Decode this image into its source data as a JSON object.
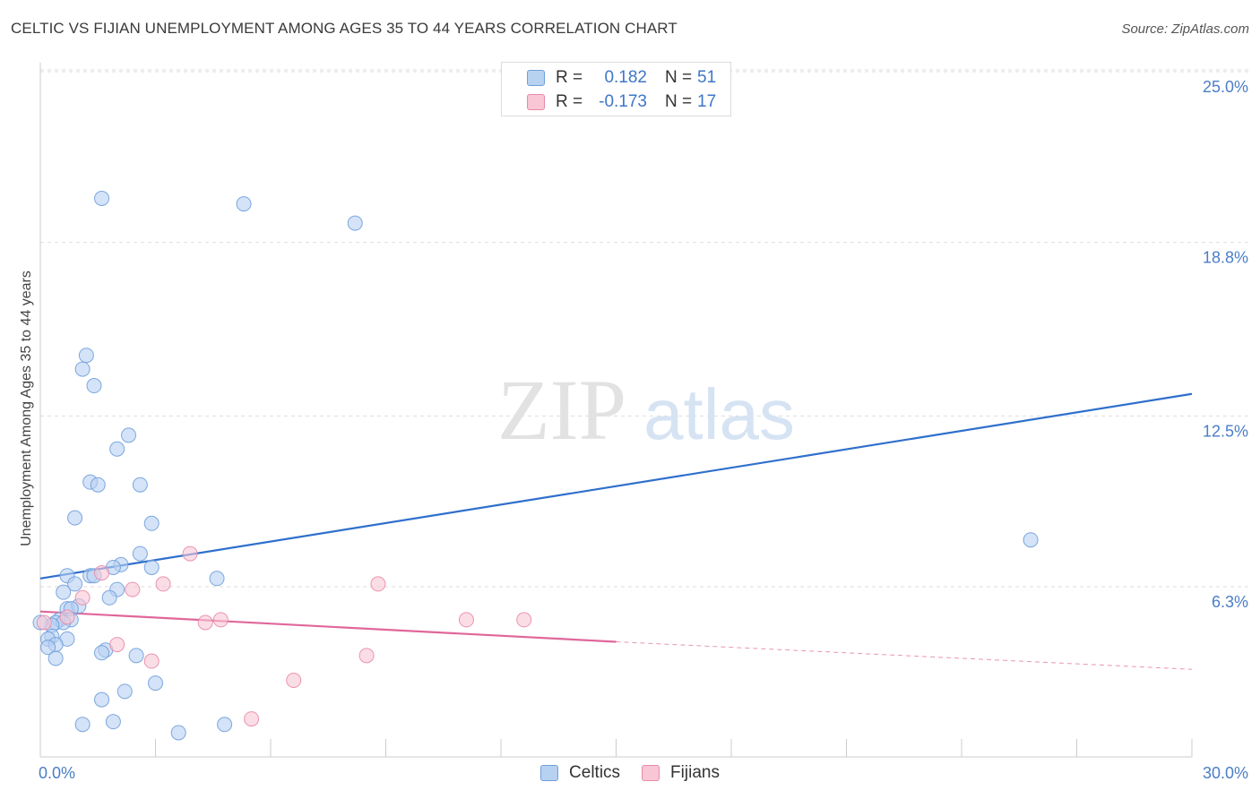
{
  "title": "CELTIC VS FIJIAN UNEMPLOYMENT AMONG AGES 35 TO 44 YEARS CORRELATION CHART",
  "source": "Source: ZipAtlas.com",
  "watermark": {
    "zip": "ZIP",
    "atlas": "atlas"
  },
  "legend": {
    "r_label": "R =",
    "n_label": "N =",
    "rows": [
      {
        "series": "Celtics",
        "r": "0.182",
        "n": "51"
      },
      {
        "series": "Fijians",
        "r": "-0.173",
        "n": "17"
      }
    ]
  },
  "bottom_legend": [
    "Celtics",
    "Fijians"
  ],
  "colors": {
    "celtics_fill": "#b7d1f1",
    "celtics_stroke": "#6f9fdb",
    "celtics_line": "#2f6fcc",
    "fijians_fill": "#f8c6d5",
    "fijians_stroke": "#e88aa8",
    "fijians_line": "#e0679a",
    "tick_text": "#4a7ec6"
  },
  "chart_data": {
    "type": "scatter",
    "title": "CELTIC VS FIJIAN UNEMPLOYMENT AMONG AGES 35 TO 44 YEARS CORRELATION CHART",
    "xlabel": "",
    "ylabel": "Unemployment Among Ages 35 to 44 years",
    "xlim": [
      0,
      30
    ],
    "ylim": [
      0,
      26
    ],
    "x_tick_labels": [
      {
        "value": 0,
        "label": "0.0%"
      },
      {
        "value": 30,
        "label": "30.0%"
      }
    ],
    "y_tick_labels": [
      {
        "value": 6.3,
        "label": "6.3%"
      },
      {
        "value": 12.5,
        "label": "12.5%"
      },
      {
        "value": 18.8,
        "label": "18.8%"
      },
      {
        "value": 25.0,
        "label": "25.0%"
      }
    ],
    "x_minor_ticks": [
      3,
      6,
      9,
      12,
      15,
      18,
      21,
      24,
      27,
      30
    ],
    "series": [
      {
        "name": "Celtics",
        "points": [
          [
            1.6,
            20.4
          ],
          [
            5.3,
            20.2
          ],
          [
            8.2,
            19.5
          ],
          [
            1.2,
            14.7
          ],
          [
            1.1,
            14.2
          ],
          [
            1.4,
            13.6
          ],
          [
            2.3,
            11.8
          ],
          [
            2.0,
            11.3
          ],
          [
            1.3,
            10.1
          ],
          [
            1.5,
            10.0
          ],
          [
            2.6,
            10.0
          ],
          [
            0.9,
            8.8
          ],
          [
            2.9,
            8.6
          ],
          [
            2.6,
            7.5
          ],
          [
            2.1,
            7.1
          ],
          [
            2.9,
            7.0
          ],
          [
            1.9,
            7.0
          ],
          [
            0.7,
            6.7
          ],
          [
            1.3,
            6.7
          ],
          [
            1.4,
            6.7
          ],
          [
            4.6,
            6.6
          ],
          [
            0.9,
            6.4
          ],
          [
            2.0,
            6.2
          ],
          [
            0.6,
            6.1
          ],
          [
            1.8,
            5.9
          ],
          [
            0.7,
            5.5
          ],
          [
            1.0,
            5.6
          ],
          [
            0.8,
            5.5
          ],
          [
            0.5,
            5.1
          ],
          [
            0.4,
            5.0
          ],
          [
            0.8,
            5.1
          ],
          [
            0.6,
            5.0
          ],
          [
            0.3,
            4.9
          ],
          [
            0.3,
            4.5
          ],
          [
            0.2,
            4.4
          ],
          [
            0.7,
            4.4
          ],
          [
            0.4,
            4.2
          ],
          [
            0.2,
            4.1
          ],
          [
            1.7,
            4.0
          ],
          [
            1.6,
            3.9
          ],
          [
            2.5,
            3.8
          ],
          [
            0.4,
            3.7
          ],
          [
            3.0,
            2.8
          ],
          [
            2.2,
            2.5
          ],
          [
            1.6,
            2.2
          ],
          [
            1.1,
            1.3
          ],
          [
            1.9,
            1.4
          ],
          [
            4.8,
            1.3
          ],
          [
            3.6,
            1.0
          ],
          [
            25.8,
            8.0
          ],
          [
            0.0,
            5.0
          ]
        ]
      },
      {
        "name": "Fijians",
        "points": [
          [
            3.9,
            7.5
          ],
          [
            1.6,
            6.8
          ],
          [
            3.2,
            6.4
          ],
          [
            2.4,
            6.2
          ],
          [
            1.1,
            5.9
          ],
          [
            0.7,
            5.2
          ],
          [
            4.3,
            5.0
          ],
          [
            4.7,
            5.1
          ],
          [
            11.1,
            5.1
          ],
          [
            12.6,
            5.1
          ],
          [
            8.8,
            6.4
          ],
          [
            2.0,
            4.2
          ],
          [
            8.5,
            3.8
          ],
          [
            2.9,
            3.6
          ],
          [
            6.6,
            2.9
          ],
          [
            5.5,
            1.5
          ],
          [
            0.1,
            5.0
          ]
        ]
      }
    ],
    "trend_lines": [
      {
        "series": "Celtics",
        "x": [
          0,
          30
        ],
        "y": [
          6.6,
          13.3
        ],
        "style": "solid"
      },
      {
        "series": "Fijians",
        "x_solid": [
          0,
          15
        ],
        "y_solid": [
          5.4,
          4.3
        ],
        "x_dashed": [
          15,
          30
        ],
        "y_dashed": [
          4.3,
          3.3
        ]
      }
    ],
    "grid": "dashed horizontal at y ticks",
    "legend_position": "top-center"
  }
}
